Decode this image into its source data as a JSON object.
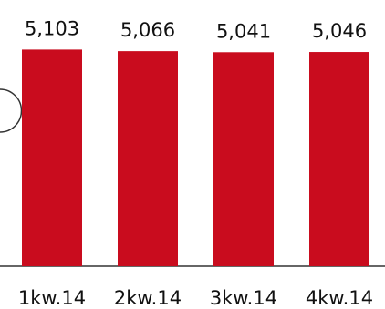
{
  "chart_data": {
    "type": "bar",
    "categories": [
      "1kw.14",
      "2kw.14",
      "3kw.14",
      "4kw.14"
    ],
    "values": [
      5.103,
      5.066,
      5.041,
      5.046
    ],
    "value_labels": [
      "5,103",
      "5,066",
      "5,041",
      "5,046"
    ],
    "title": "",
    "xlabel": "",
    "ylabel": "",
    "grid": false,
    "legend": "none",
    "bar_color": "#c90c1e",
    "axis_color": "#333333"
  }
}
